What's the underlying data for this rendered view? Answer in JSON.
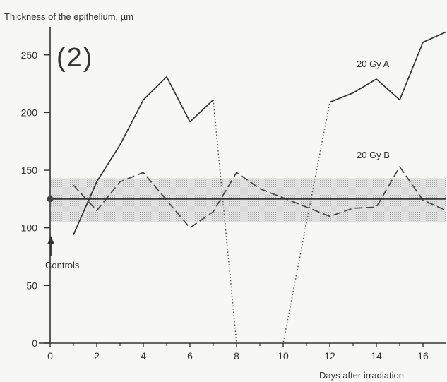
{
  "chart_data": {
    "type": "line",
    "panel_label": "(2)",
    "ylabel": "Thickness of the epithelium, µm",
    "xlabel": "Days after irradiation",
    "xlim": [
      0,
      17
    ],
    "ylim": [
      0,
      270
    ],
    "x_ticks": [
      0,
      2,
      4,
      6,
      8,
      10,
      12,
      14,
      16
    ],
    "y_ticks": [
      0,
      50,
      100,
      150,
      200,
      250
    ],
    "grid": false,
    "controls": {
      "label": "Controls",
      "mean": 125,
      "band": [
        105,
        143
      ],
      "x_range": [
        0,
        17
      ]
    },
    "series": [
      {
        "name": "20 Gy A",
        "style": "solid",
        "points": [
          [
            1,
            94
          ],
          [
            2,
            140
          ],
          [
            3,
            172
          ],
          [
            4,
            211
          ],
          [
            5,
            231
          ],
          [
            6,
            192
          ],
          [
            7,
            211
          ]
        ]
      },
      {
        "name": "",
        "style": "dotted",
        "points": [
          [
            7,
            211
          ],
          [
            8,
            0
          ],
          [
            10,
            0
          ],
          [
            12,
            209
          ]
        ]
      },
      {
        "name": "",
        "style": "solid",
        "points": [
          [
            12,
            209
          ],
          [
            13,
            217
          ],
          [
            14,
            229
          ],
          [
            15,
            211
          ],
          [
            16,
            261
          ],
          [
            17,
            270
          ]
        ]
      },
      {
        "name": "20 Gy B",
        "style": "dashed",
        "points": [
          [
            1,
            137
          ],
          [
            2,
            115
          ],
          [
            3,
            140
          ],
          [
            4,
            148
          ],
          [
            5,
            124
          ],
          [
            6,
            100
          ],
          [
            7,
            114
          ],
          [
            8,
            148
          ],
          [
            9,
            134
          ],
          [
            10,
            126
          ],
          [
            11,
            118
          ],
          [
            12,
            110
          ],
          [
            13,
            117
          ],
          [
            14,
            118
          ],
          [
            15,
            153
          ],
          [
            16,
            124
          ],
          [
            17,
            115
          ]
        ]
      }
    ]
  }
}
